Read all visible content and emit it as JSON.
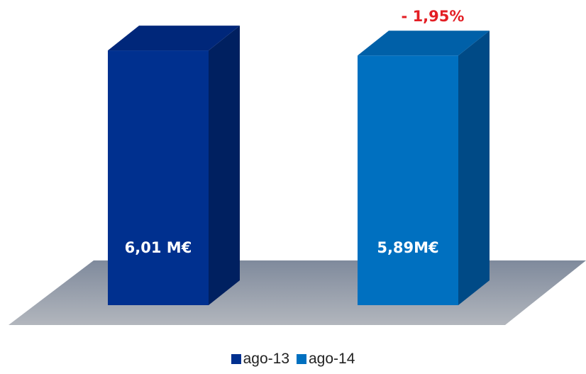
{
  "chart_data": {
    "type": "bar",
    "style": "3d",
    "categories": [
      "ago-13",
      "ago-14"
    ],
    "values": [
      6.01,
      5.89
    ],
    "value_labels": [
      "6,01 M€",
      "5,89M€"
    ],
    "annotation": "- 1,95%",
    "legend": {
      "placement": "bottom-center",
      "entries": [
        "ago-13",
        "ago-14"
      ]
    },
    "colors": {
      "ago-13": {
        "front": "#00308f",
        "side": "#002060",
        "top": "#00277a"
      },
      "ago-14": {
        "front": "#0070c0",
        "side": "#004a86",
        "top": "#0060a8"
      },
      "floor": "#8a93a3",
      "annotation": "#e31e24"
    },
    "grid": false
  }
}
